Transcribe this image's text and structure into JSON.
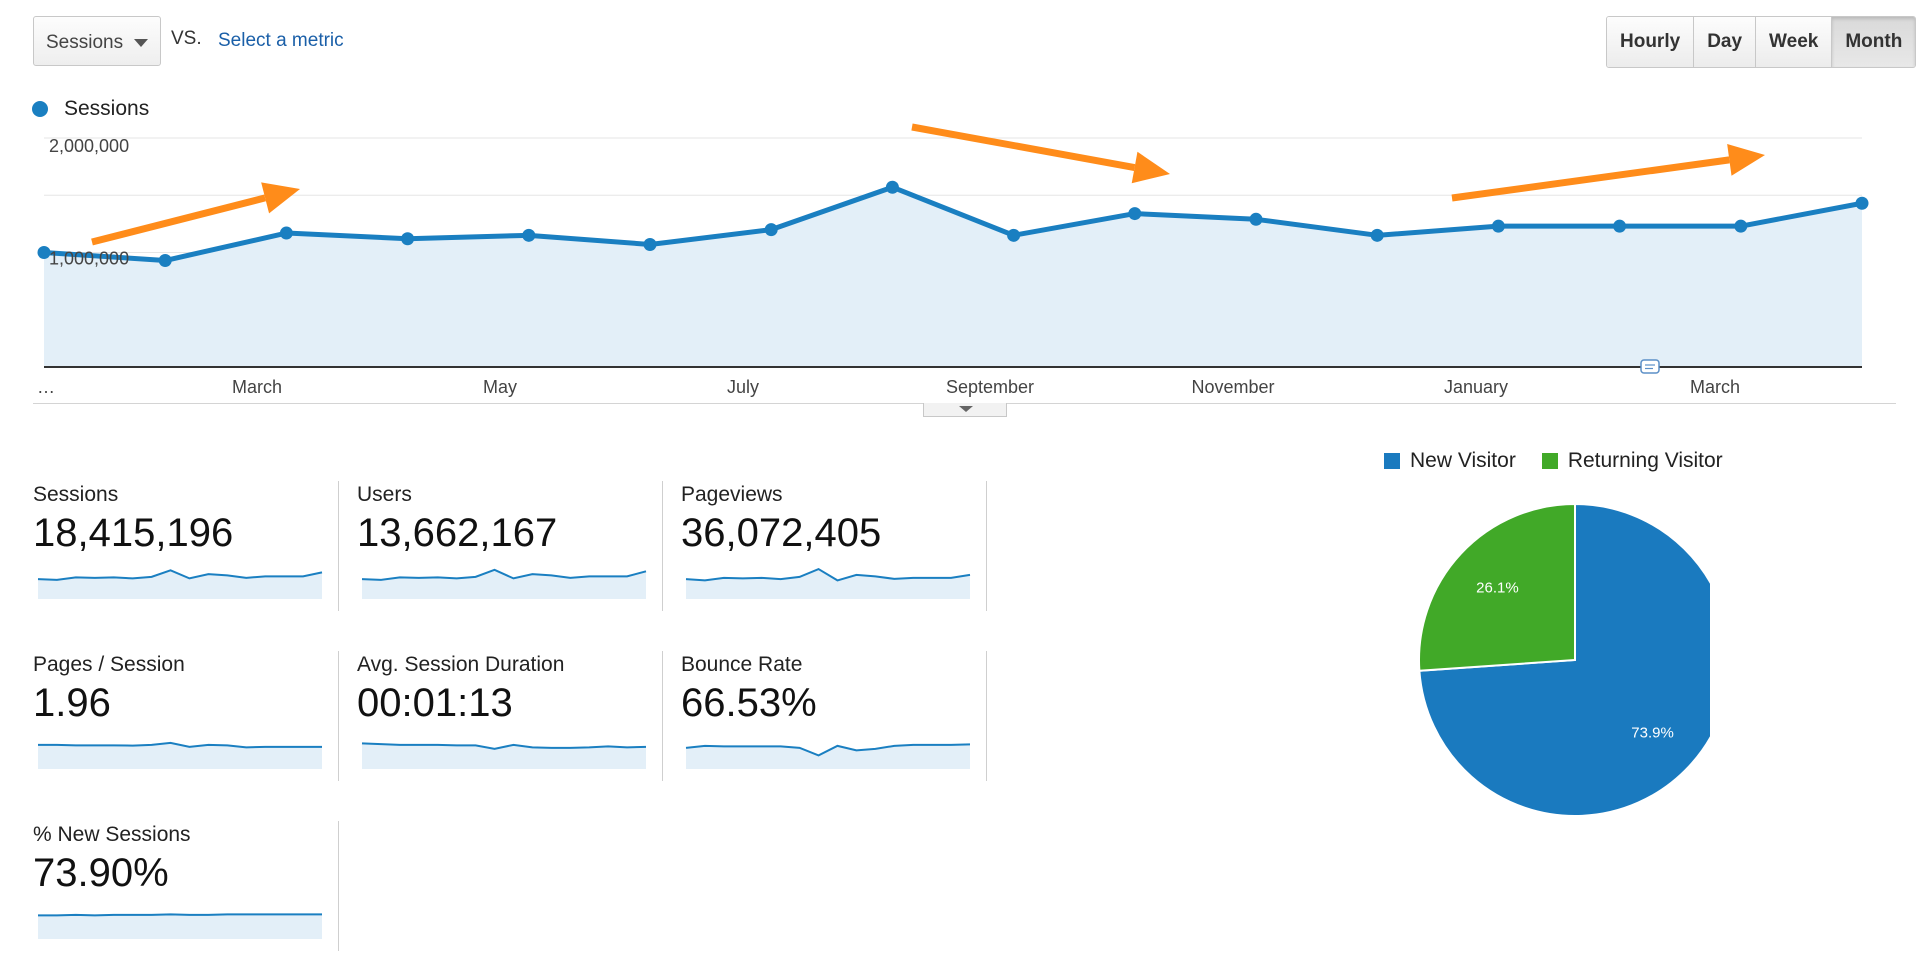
{
  "controls": {
    "metric_select": "Sessions",
    "vs_label": "VS.",
    "select_metric_link": "Select a metric",
    "ranges": [
      "Hourly",
      "Day",
      "Week",
      "Month"
    ],
    "active_range": "Month"
  },
  "chart_legend": {
    "series_name": "Sessions",
    "color": "#1a7fc1"
  },
  "chart_data": {
    "type": "area",
    "series": [
      {
        "name": "Sessions",
        "color": "#1a7fc1",
        "values": [
          1000000,
          930000,
          1170000,
          1120000,
          1150000,
          1070000,
          1200000,
          1570000,
          1150000,
          1340000,
          1290000,
          1150000,
          1230000,
          1230000,
          1230000,
          1430000
        ]
      }
    ],
    "y_ticks": [
      "2,000,000",
      "1,000,000"
    ],
    "ylim": [
      0,
      2000000
    ],
    "x_tick_labels": [
      "…",
      "March",
      "May",
      "July",
      "September",
      "November",
      "January",
      "March"
    ],
    "grid": true,
    "fill_color": "#e3eff8",
    "annotation_arrows_color": "#ff8c1a"
  },
  "metrics": [
    {
      "label": "Sessions",
      "value": "18,415,196",
      "spark": [
        0.55,
        0.52,
        0.62,
        0.6,
        0.62,
        0.58,
        0.64,
        0.9,
        0.58,
        0.75,
        0.7,
        0.6,
        0.66,
        0.66,
        0.66,
        0.82
      ]
    },
    {
      "label": "Users",
      "value": "13,662,167",
      "spark": [
        0.55,
        0.52,
        0.62,
        0.6,
        0.62,
        0.58,
        0.64,
        0.92,
        0.58,
        0.75,
        0.7,
        0.6,
        0.66,
        0.66,
        0.66,
        0.86
      ]
    },
    {
      "label": "Pageviews",
      "value": "36,072,405",
      "spark": [
        0.55,
        0.5,
        0.6,
        0.58,
        0.6,
        0.55,
        0.64,
        0.95,
        0.5,
        0.72,
        0.66,
        0.56,
        0.6,
        0.6,
        0.6,
        0.72
      ]
    },
    {
      "label": "Pages / Session",
      "value": "1.96",
      "spark": [
        0.72,
        0.72,
        0.7,
        0.7,
        0.7,
        0.69,
        0.72,
        0.8,
        0.64,
        0.72,
        0.7,
        0.62,
        0.64,
        0.64,
        0.64,
        0.64
      ]
    },
    {
      "label": "Avg. Session Duration",
      "value": "00:01:13",
      "spark": [
        0.78,
        0.75,
        0.72,
        0.72,
        0.72,
        0.7,
        0.7,
        0.56,
        0.72,
        0.62,
        0.6,
        0.6,
        0.62,
        0.66,
        0.62,
        0.64
      ]
    },
    {
      "label": "Bounce Rate",
      "value": "66.53%",
      "spark": [
        0.6,
        0.68,
        0.66,
        0.66,
        0.66,
        0.66,
        0.6,
        0.3,
        0.68,
        0.5,
        0.56,
        0.68,
        0.72,
        0.72,
        0.72,
        0.74
      ]
    },
    {
      "label": "% New Sessions",
      "value": "73.90%",
      "spark": [
        0.7,
        0.7,
        0.72,
        0.7,
        0.72,
        0.72,
        0.72,
        0.74,
        0.72,
        0.72,
        0.74,
        0.74,
        0.74,
        0.74,
        0.74,
        0.74
      ]
    }
  ],
  "pie_data": {
    "legend": [
      {
        "name": "New Visitor",
        "color": "#1a7abf"
      },
      {
        "name": "Returning Visitor",
        "color": "#41a928"
      }
    ],
    "slices": [
      {
        "name": "New Visitor",
        "value": 73.9,
        "label": "73.9%",
        "color": "#1a7abf"
      },
      {
        "name": "Returning Visitor",
        "value": 26.1,
        "label": "26.1%",
        "color": "#41a928"
      }
    ]
  }
}
